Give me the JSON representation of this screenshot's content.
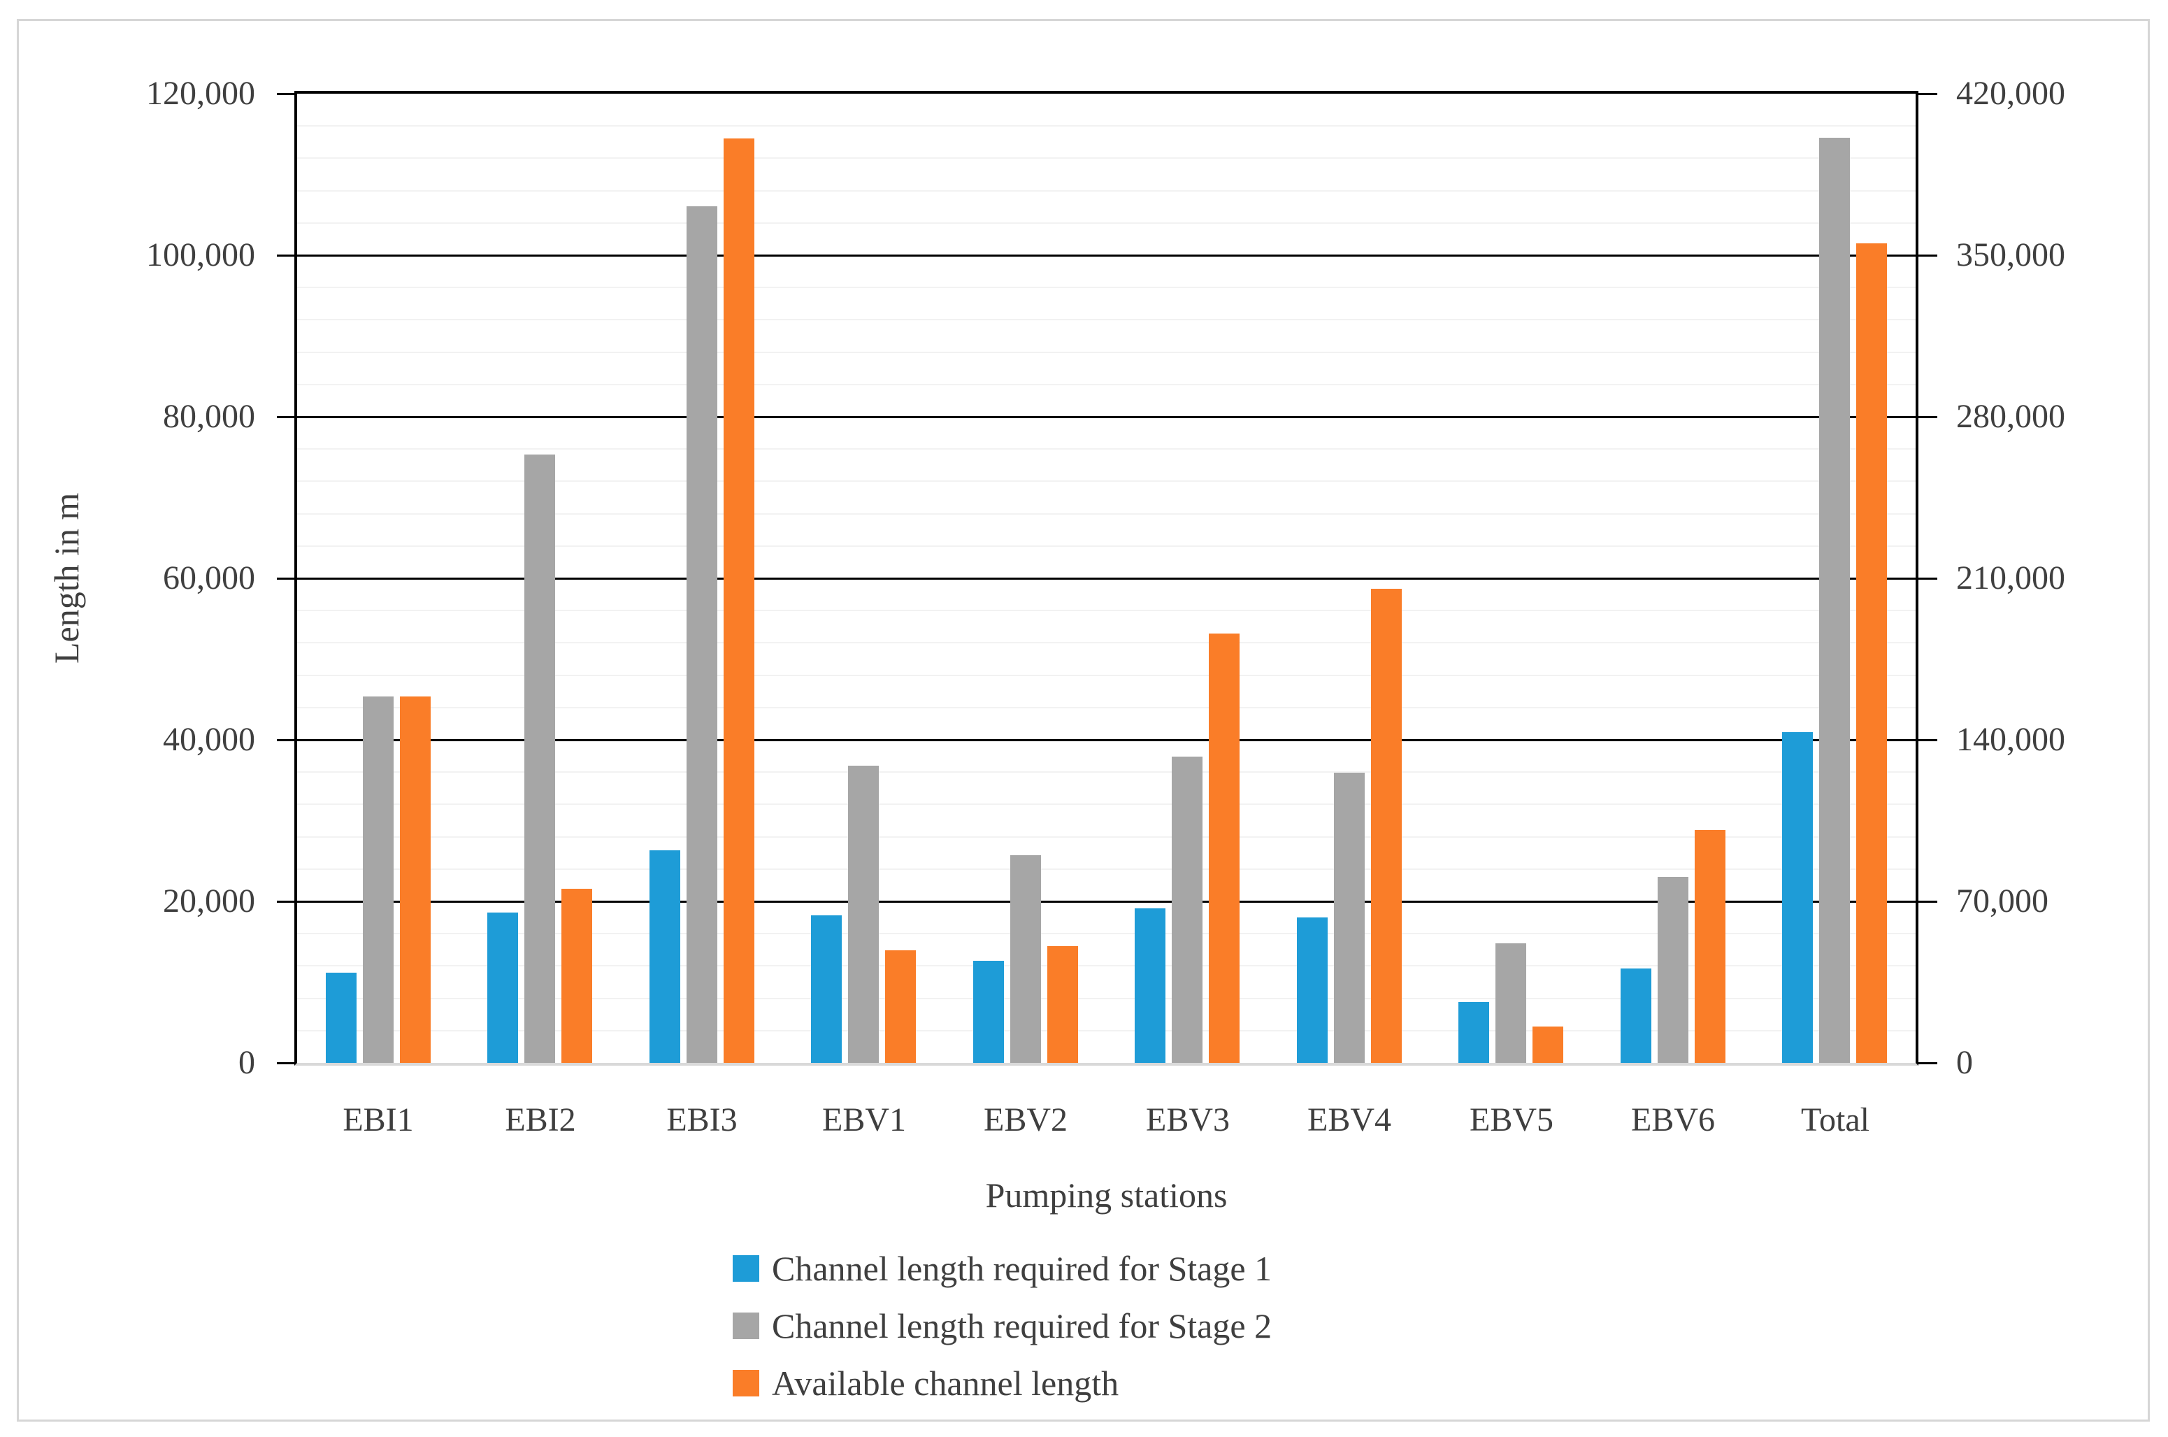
{
  "chart_data": {
    "type": "bar",
    "title": "",
    "xlabel": "Pumping stations",
    "ylabel": "Length in m",
    "categories": [
      "EBI1",
      "EBI2",
      "EBI3",
      "EBV1",
      "EBV2",
      "EBV3",
      "EBV4",
      "EBV5",
      "EBV6",
      "Total"
    ],
    "series": [
      {
        "name": "Channel length required for Stage 1",
        "color": "#1E9CD7",
        "values": [
          11200,
          18600,
          26300,
          18300,
          12600,
          19100,
          18000,
          7500,
          11700,
          143300
        ]
      },
      {
        "name": "Channel length required for Stage 2",
        "color": "#A6A6A6",
        "values": [
          45400,
          75300,
          106100,
          36800,
          25700,
          37900,
          35900,
          14800,
          23000,
          400900
        ]
      },
      {
        "name": "Available channel length",
        "color": "#FA7D28",
        "values": [
          45400,
          21600,
          114500,
          13900,
          14500,
          53200,
          58700,
          4500,
          28800,
          355100
        ]
      }
    ],
    "primary_axis": {
      "max": 120000,
      "tick_labels": [
        "0",
        "20,000",
        "40,000",
        "60,000",
        "80,000",
        "100,000",
        "120,000"
      ]
    },
    "secondary_axis": {
      "max": 420000,
      "tick_labels": [
        "0",
        "70,000",
        "140,000",
        "210,000",
        "280,000",
        "350,000",
        "420,000"
      ],
      "applies_to_categories": [
        "Total"
      ]
    },
    "gridlines": {
      "major_interval": 20000,
      "minor_interval": 4000,
      "grid": "on"
    },
    "legend_position": "bottom-left"
  }
}
